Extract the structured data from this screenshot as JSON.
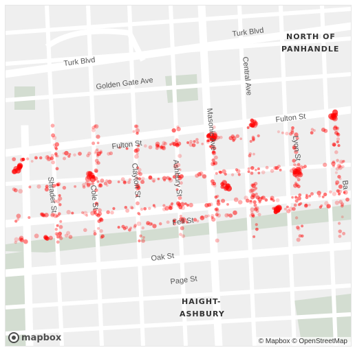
{
  "map": {
    "neighborhoods": {
      "north_of_panhandle": [
        "NORTH OF",
        "PANHANDLE"
      ],
      "haight_ashbury": [
        "HAIGHT-",
        "ASHBURY"
      ]
    },
    "streets": {
      "turk_upper": "Turk Blvd",
      "turk_lower": "Turk Blvd",
      "golden_gate": "Golden Gate Ave",
      "central": "Central Ave",
      "fulton_right": "Fulton St",
      "fulton_left": "Fulton St",
      "masonic": "Masonic Ave",
      "shrader": "Shrader St",
      "cole": "Cole St",
      "clayton": "Clayton St",
      "ashbury": "Ashbury St",
      "lyon": "Lyon St",
      "fell": "Fell St",
      "oak": "Oak St",
      "page": "Page St",
      "baker": "Ba"
    },
    "colors": {
      "background": "#efefef",
      "road": "#ffffff",
      "park": "#d3ddd1",
      "park_dark": "#c8d4c6",
      "points": "#ff0000"
    }
  },
  "logo": {
    "text": "mapbox"
  },
  "attribution": {
    "mapbox": "© Mapbox",
    "osm": "© OpenStreetMap"
  }
}
